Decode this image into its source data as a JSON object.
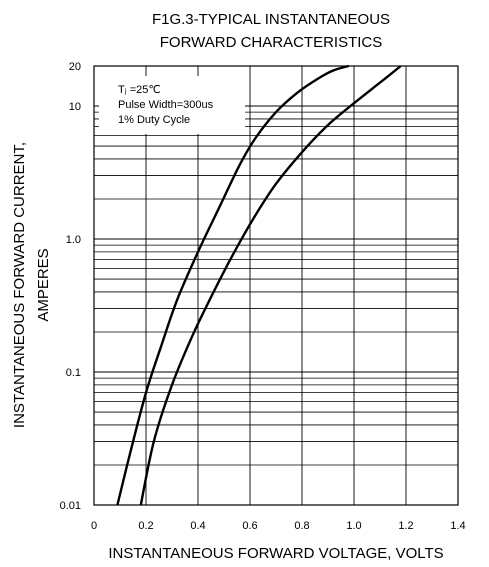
{
  "chart_data": {
    "type": "line",
    "title": "F1G.3-TYPICAL INSTANTANEOUS",
    "subtitle": "FORWARD CHARACTERISTICS",
    "xlabel": "INSTANTANEOUS FORWARD VOLTAGE, VOLTS",
    "ylabel": "INSTANTANEOUS FORWARD CURRENT,",
    "ylabel2": "AMPERES",
    "xlim": [
      0,
      1.4
    ],
    "ylim": [
      0.01,
      20
    ],
    "yscale": "log",
    "grid": true,
    "x_ticks": [
      {
        "value": 0,
        "label": "0"
      },
      {
        "value": 0.2,
        "label": "0.2"
      },
      {
        "value": 0.4,
        "label": "0.4"
      },
      {
        "value": 0.6,
        "label": "0.6"
      },
      {
        "value": 0.8,
        "label": "0.8"
      },
      {
        "value": 1.0,
        "label": "1.0"
      },
      {
        "value": 1.2,
        "label": "1.2"
      },
      {
        "value": 1.4,
        "label": "1.4"
      }
    ],
    "y_ticks": [
      {
        "value": 0.01,
        "label": "0.01"
      },
      {
        "value": 0.1,
        "label": "0.1"
      },
      {
        "value": 1.0,
        "label": "1.0"
      },
      {
        "value": 10,
        "label": "10"
      },
      {
        "value": 20,
        "label": "20"
      }
    ],
    "legend": {
      "placement": "top-left",
      "lines": [
        "Tⱼ =25℃",
        "Pulse Width=300us",
        "1% Duty Cycle"
      ]
    },
    "series": [
      {
        "x": [
          0.09,
          0.14,
          0.2,
          0.26,
          0.32,
          0.4,
          0.48,
          0.56,
          0.62,
          0.7,
          0.78,
          0.86,
          0.92,
          0.98
        ],
        "y": [
          0.01,
          0.025,
          0.07,
          0.16,
          0.35,
          0.8,
          1.7,
          3.6,
          5.7,
          9.0,
          12.5,
          16.0,
          18.5,
          20
        ]
      },
      {
        "x": [
          0.18,
          0.23,
          0.3,
          0.38,
          0.46,
          0.54,
          0.62,
          0.7,
          0.8,
          0.9,
          1.0,
          1.1,
          1.18
        ],
        "y": [
          0.01,
          0.03,
          0.08,
          0.19,
          0.4,
          0.8,
          1.5,
          2.6,
          4.5,
          7.2,
          10.5,
          15.0,
          20
        ]
      }
    ]
  }
}
